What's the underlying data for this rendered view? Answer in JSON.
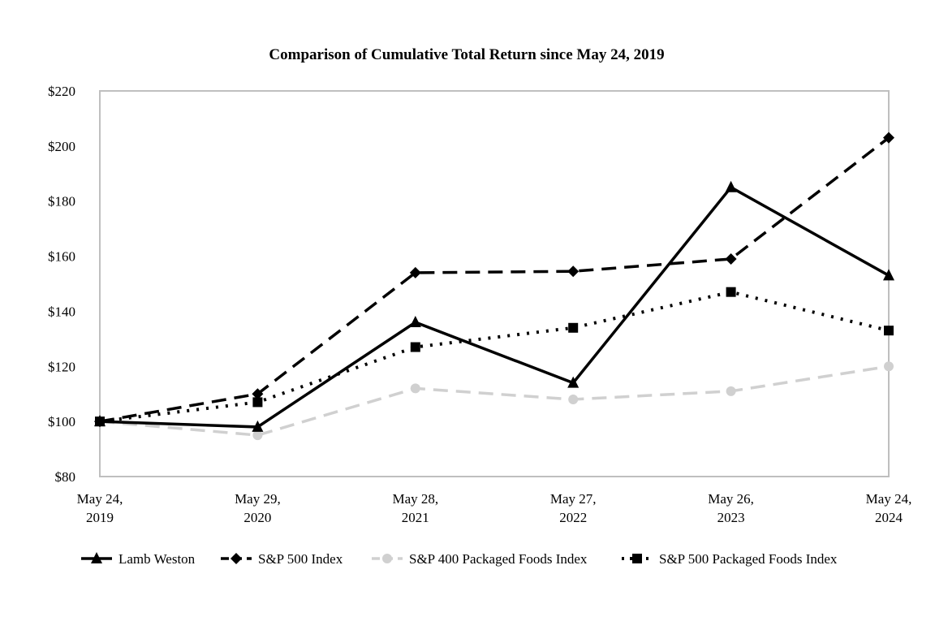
{
  "chart_data": {
    "type": "line",
    "title": "Comparison of Cumulative Total Return since May 24, 2019",
    "xlabel": "",
    "ylabel": "",
    "categories": [
      [
        "May 24,",
        "2019"
      ],
      [
        "May 29,",
        "2020"
      ],
      [
        "May 28,",
        "2021"
      ],
      [
        "May 27,",
        "2022"
      ],
      [
        "May 26,",
        "2023"
      ],
      [
        "May 24,",
        "2024"
      ]
    ],
    "ylim": [
      80,
      220
    ],
    "yticks": [
      80,
      100,
      120,
      140,
      160,
      180,
      200,
      220
    ],
    "ytick_labels": [
      "$80",
      "$100",
      "$120",
      "$140",
      "$160",
      "$180",
      "$200",
      "$220"
    ],
    "grid": false,
    "legend_position": "bottom",
    "series": [
      {
        "name": "Lamb Weston",
        "values": [
          100,
          98,
          136,
          114,
          185,
          153
        ],
        "color": "#000000",
        "dash": "solid",
        "marker": "triangle"
      },
      {
        "name": "S&P 500 Index",
        "values": [
          100,
          110,
          154,
          154.5,
          159,
          203
        ],
        "color": "#000000",
        "dash": "dashed",
        "marker": "diamond"
      },
      {
        "name": "S&P 400 Packaged Foods Index",
        "values": [
          100,
          95,
          112,
          108,
          111,
          120
        ],
        "color": "#d0d0d0",
        "dash": "dashed",
        "marker": "circle"
      },
      {
        "name": "S&P 500 Packaged Foods Index",
        "values": [
          100,
          107,
          127,
          134,
          147,
          133
        ],
        "color": "#000000",
        "dash": "dotted",
        "marker": "square"
      }
    ]
  }
}
